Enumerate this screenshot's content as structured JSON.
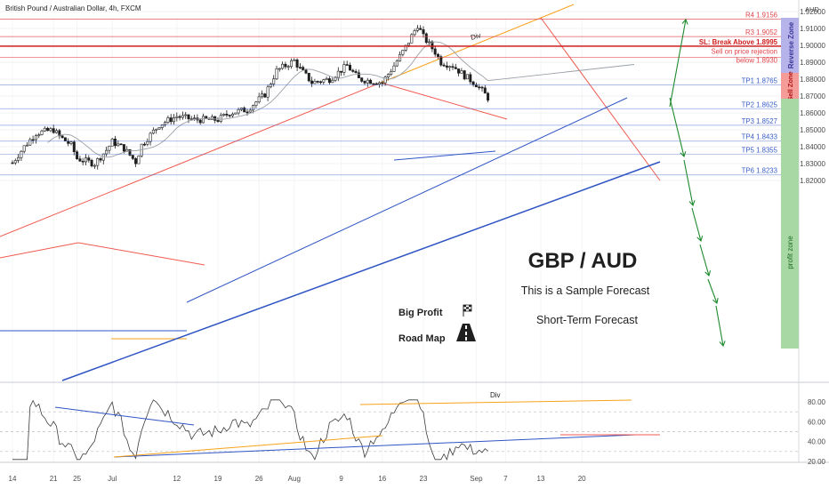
{
  "header": {
    "title": "British Pound / Australian Dollar, 4h, FXCM",
    "currency": "AUD"
  },
  "chart_data": {
    "type": "candlestick",
    "symbol": "GBP/AUD",
    "timeframe": "4h",
    "price_axis": {
      "ylim": [
        1.8155,
        1.9205
      ],
      "ticks": [
        "1.92000",
        "1.91000",
        "1.90000",
        "1.89000",
        "1.88000",
        "1.87000",
        "1.86000",
        "1.85000",
        "1.84000",
        "1.83000",
        "1.82000"
      ]
    },
    "time_axis": {
      "ticks": [
        "14",
        "21",
        "25",
        "Jul",
        "12",
        "19",
        "26",
        "Aug",
        "9",
        "16",
        "23",
        "Sep",
        "7",
        "13",
        "20"
      ]
    },
    "close_path": [
      [
        "Jun 14",
        1.8305
      ],
      [
        "Jun 16",
        1.84
      ],
      [
        "Jun 18",
        1.848
      ],
      [
        "Jun 21",
        1.85
      ],
      [
        "Jun 22",
        1.846
      ],
      [
        "Jun 24",
        1.841
      ],
      [
        "Jun 25",
        1.833
      ],
      [
        "Jun 28",
        1.83
      ],
      [
        "Jun 30",
        1.838
      ],
      [
        "Jul 1",
        1.843
      ],
      [
        "Jul 3",
        1.839
      ],
      [
        "Jul 5",
        1.831
      ],
      [
        "Jul 6",
        1.841
      ],
      [
        "Jul 9",
        1.853
      ],
      [
        "Jul 12",
        1.858
      ],
      [
        "Jul 15",
        1.856
      ],
      [
        "Jul 19",
        1.856
      ],
      [
        "Jul 21",
        1.86
      ],
      [
        "Jul 24",
        1.862
      ],
      [
        "Jul 27",
        1.871
      ],
      [
        "Jul 29",
        1.885
      ],
      [
        "Aug 1",
        1.891
      ],
      [
        "Aug 2",
        1.886
      ],
      [
        "Aug 4",
        1.878
      ],
      [
        "Aug 7",
        1.88
      ],
      [
        "Aug 10",
        1.888
      ],
      [
        "Aug 12",
        1.88
      ],
      [
        "Aug 14",
        1.879
      ],
      [
        "Aug 16",
        1.878
      ],
      [
        "Aug 18",
        1.888
      ],
      [
        "Aug 20",
        1.899
      ],
      [
        "Aug 22",
        1.912
      ],
      [
        "Aug 23",
        1.905
      ],
      [
        "Aug 25",
        1.896
      ],
      [
        "Aug 26",
        1.89
      ],
      [
        "Aug 28",
        1.888
      ],
      [
        "Aug 30",
        1.882
      ],
      [
        "Sep 1",
        1.877
      ],
      [
        "Sep 3",
        1.869
      ]
    ],
    "levels": [
      {
        "label": "R4 1.9156",
        "value": 1.9156,
        "color": "#e0474c"
      },
      {
        "label": "R3 1.9052",
        "value": 1.9052,
        "color": "#e0474c"
      },
      {
        "label": "SL: Break Above 1.8995",
        "value": 1.8995,
        "color": "#d01c1c"
      },
      {
        "label": "Sell on price rejection",
        "value": 1.893,
        "color": "#e0474c"
      },
      {
        "label": "below 1.8930",
        "value": 1.893,
        "color": "#e0474c"
      },
      {
        "label": "TP1 1.8765",
        "value": 1.8765,
        "color": "#3a5fc8"
      },
      {
        "label": "TP2 1.8625",
        "value": 1.8625,
        "color": "#3a5fc8"
      },
      {
        "label": "TP3 1.8527",
        "value": 1.8527,
        "color": "#3a5fc8"
      },
      {
        "label": "TP4 1.8433",
        "value": 1.8433,
        "color": "#3a5fc8"
      },
      {
        "label": "TP5 1.8355",
        "value": 1.8355,
        "color": "#3a5fc8"
      },
      {
        "label": "TP6 1.8233",
        "value": 1.8233,
        "color": "#3a5fc8"
      }
    ],
    "zones": {
      "reverse": "Reverse Zone",
      "sell": "Sell Zone",
      "profit": "profit zone"
    },
    "annotations": {
      "div_top": "Div",
      "div_rsi": "Div",
      "pair": "GBP / AUD",
      "sample": "This is a Sample Forecast",
      "short_term": "Short-Term Forecast",
      "big_profit": "Big Profit",
      "road_map": "Road Map"
    },
    "rsi_panel": {
      "ticks": [
        "80.00",
        "60.00",
        "40.00",
        "20.00"
      ],
      "ylim": [
        15,
        95
      ],
      "dashed_levels": [
        70,
        50,
        30
      ]
    },
    "colors": {
      "up": "#1f1f1f",
      "down": "#1f1f1f",
      "channel_top": "#f7a21b",
      "trend_red": "#f05a4f",
      "trend_blue": "#2f55c4",
      "ma": "#9aa0a6",
      "arrows": "#1f8a2e",
      "reverse_zone": "#b6b2ea",
      "sell_zone": "#f59b98",
      "profit_zone": "#a8d8a3"
    }
  }
}
